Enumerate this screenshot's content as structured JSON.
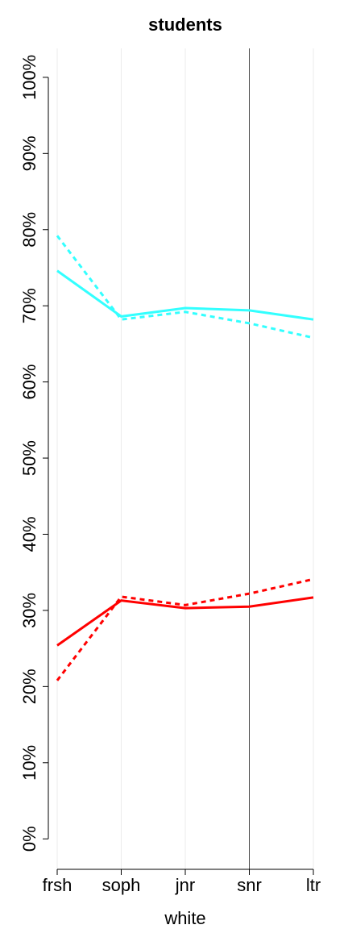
{
  "chart_data": {
    "type": "line",
    "title": "students",
    "x_label": "white",
    "categories": [
      "frsh",
      "soph",
      "jnr",
      "snr",
      "ltr"
    ],
    "series": [
      {
        "color": "#33ffff",
        "dashed": false,
        "values": [
          74.6,
          68.6,
          69.7,
          69.4,
          68.2
        ]
      },
      {
        "color": "#33ffff",
        "dashed": true,
        "values": [
          79.2,
          68.2,
          69.2,
          67.7,
          65.8
        ]
      },
      {
        "color": "#ff0000",
        "dashed": false,
        "values": [
          25.4,
          31.3,
          30.3,
          30.5,
          31.7
        ]
      },
      {
        "color": "#ff0000",
        "dashed": true,
        "values": [
          20.8,
          31.8,
          30.7,
          32.2,
          34.1
        ]
      }
    ],
    "ylim": [
      -4,
      103.8
    ],
    "yticks": [
      {
        "value": 0,
        "label": "0%"
      },
      {
        "value": 10,
        "label": "10%"
      },
      {
        "value": 20,
        "label": "20%"
      },
      {
        "value": 30,
        "label": "30%"
      },
      {
        "value": 40,
        "label": "40%"
      },
      {
        "value": 50,
        "label": "50%"
      },
      {
        "value": 60,
        "label": "60%"
      },
      {
        "value": 70,
        "label": "70%"
      },
      {
        "value": 80,
        "label": "80%"
      },
      {
        "value": 90,
        "label": "90%"
      },
      {
        "value": 100,
        "label": "100%"
      }
    ],
    "vline_index": 3,
    "grid": true
  }
}
